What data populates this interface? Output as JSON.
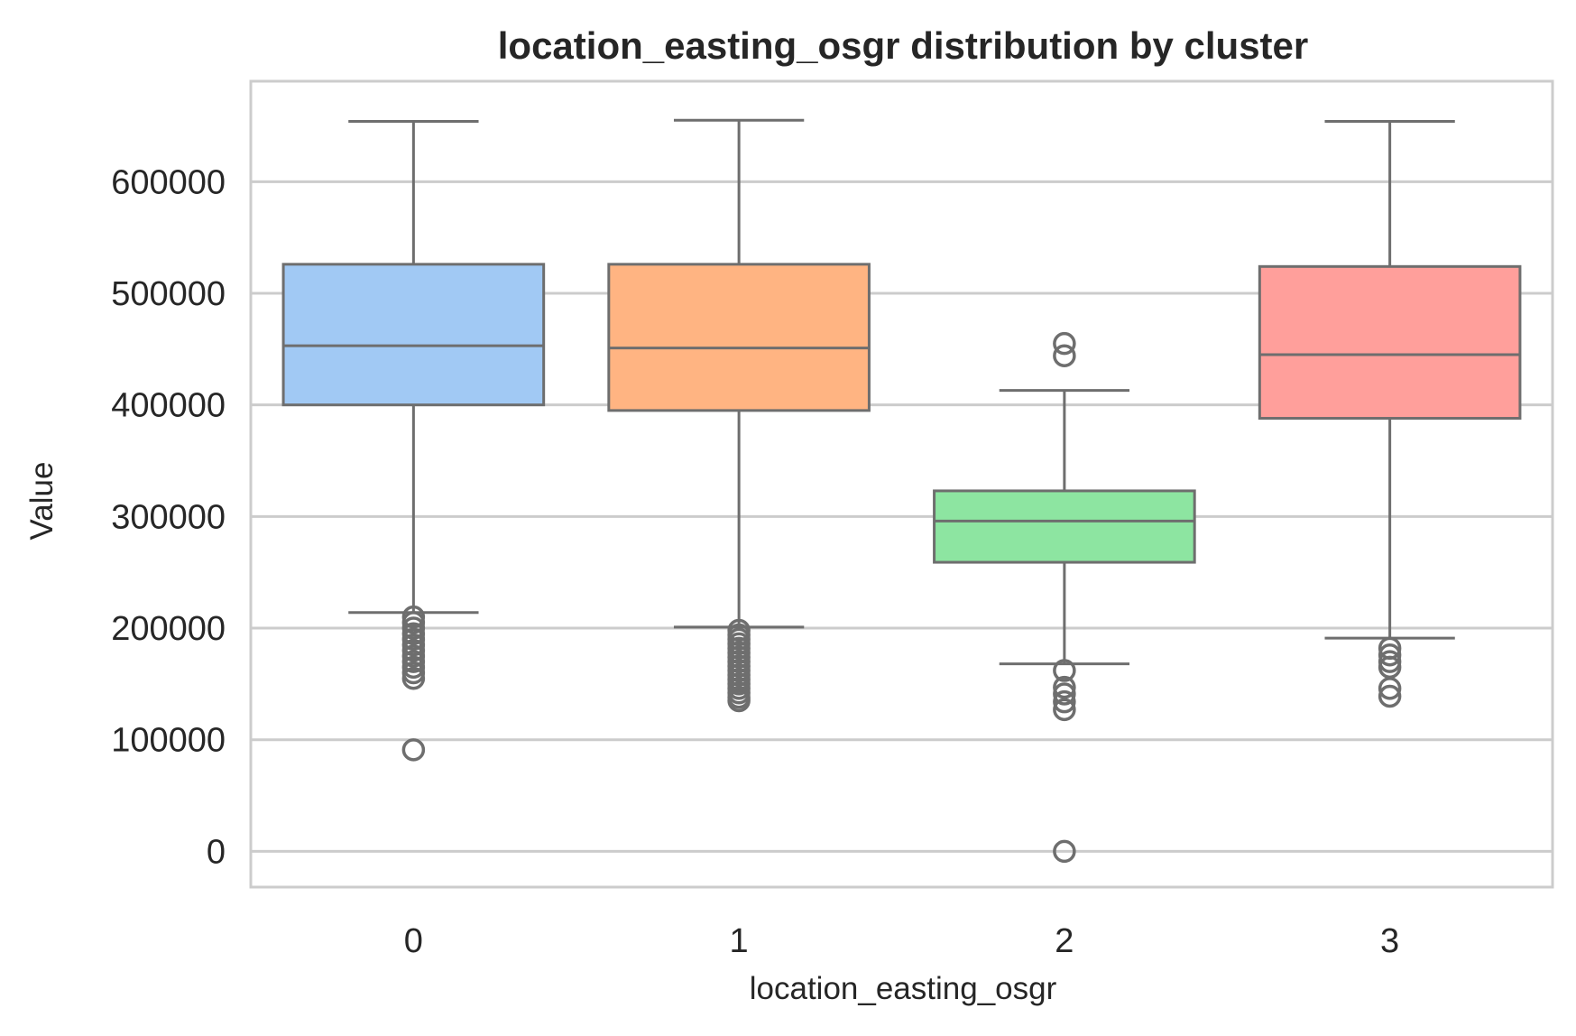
{
  "chart_data": {
    "type": "box",
    "title": "location_easting_osgr distribution by cluster",
    "xlabel": "location_easting_osgr",
    "ylabel": "Value",
    "ylim": [
      -32000,
      690000
    ],
    "yticks": [
      0,
      100000,
      200000,
      300000,
      400000,
      500000,
      600000
    ],
    "grid": true,
    "legend": "none",
    "categories": [
      "0",
      "1",
      "2",
      "3"
    ],
    "series": [
      {
        "category": "0",
        "color": "#a1c9f4",
        "whisker_low": 214000,
        "q1": 400000,
        "median": 453000,
        "q3": 526000,
        "whisker_high": 654000,
        "outliers": [
          210000,
          205000,
          200000,
          195000,
          190000,
          185000,
          180000,
          175000,
          170000,
          165000,
          160000,
          155000,
          91000
        ]
      },
      {
        "category": "1",
        "color": "#ffb482",
        "whisker_low": 201000,
        "q1": 395000,
        "median": 451000,
        "q3": 526000,
        "whisker_high": 655000,
        "outliers": [
          198000,
          194000,
          190000,
          186000,
          182000,
          178000,
          174000,
          170000,
          166000,
          162000,
          158000,
          154000,
          150000,
          146000,
          142000,
          138000,
          135000
        ]
      },
      {
        "category": "2",
        "color": "#8de5a1",
        "whisker_low": 168000,
        "q1": 259000,
        "median": 296000,
        "q3": 323000,
        "whisker_high": 413000,
        "outliers": [
          455000,
          444000,
          162000,
          147000,
          141000,
          134000,
          127000,
          0
        ]
      },
      {
        "category": "3",
        "color": "#ff9f9b",
        "whisker_low": 191000,
        "q1": 388000,
        "median": 445000,
        "q3": 524000,
        "whisker_high": 654000,
        "outliers": [
          182000,
          176000,
          170000,
          165000,
          146000,
          139000
        ]
      }
    ]
  }
}
